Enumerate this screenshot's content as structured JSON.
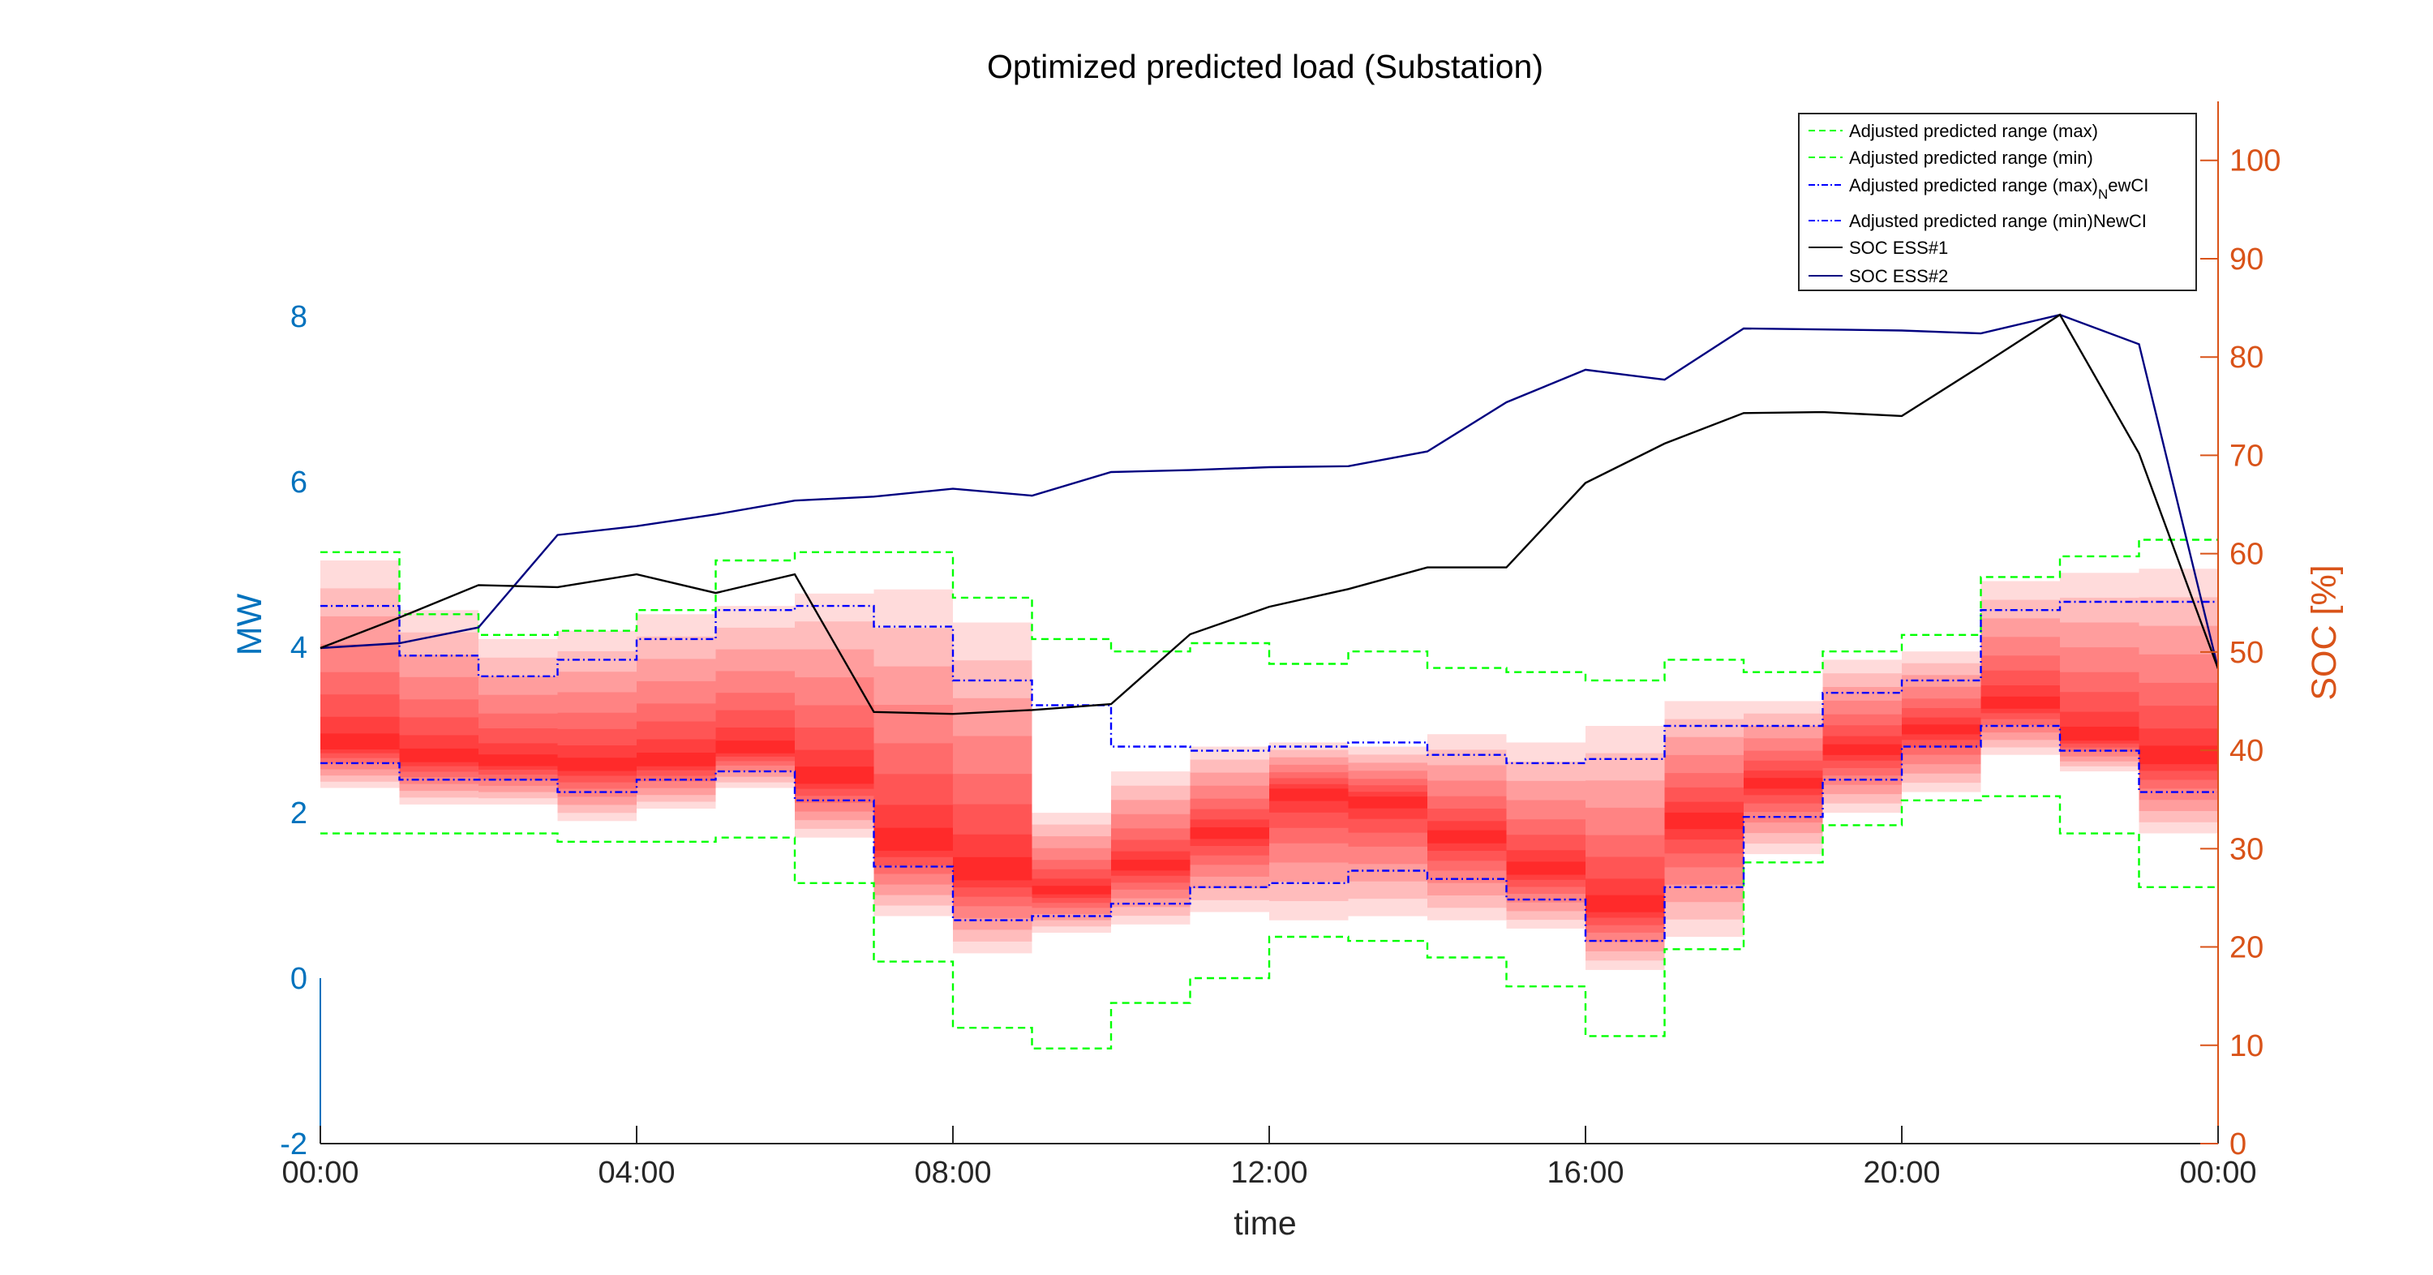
{
  "chart_data": {
    "type": "line",
    "title": "Optimized predicted load (Substation)",
    "xlabel": "time",
    "ylabel_left": "MW",
    "ylabel_right": "SOC [%]",
    "x_hours": [
      0,
      24
    ],
    "x_ticks": [
      0,
      4,
      8,
      12,
      16,
      20,
      24
    ],
    "x_tick_labels": [
      "00:00",
      "04:00",
      "08:00",
      "12:00",
      "16:00",
      "20:00",
      "00:00"
    ],
    "ylim_left": [
      -2,
      10.6
    ],
    "yticks_left": [
      -2,
      0,
      2,
      4,
      6,
      8
    ],
    "ylim_right": [
      0,
      106
    ],
    "yticks_right": [
      0,
      10,
      20,
      30,
      40,
      50,
      60,
      70,
      80,
      90,
      100
    ],
    "colors": {
      "left_axis": "#0072BD",
      "right_axis": "#D95319",
      "max_min_range": "#00FF00",
      "newci_range": "#0000FF",
      "soc1": "#000000",
      "soc2": "#000080",
      "band": "#FF0000"
    },
    "legend_position": "top-right",
    "legend": [
      "Adjusted predicted range (max)",
      "Adjusted predicted range (min)",
      "Adjusted predicted range (max)",
      "Adjusted predicted range (min)NewCI",
      "SOC ESS#1",
      "SOC ESS#2"
    ],
    "legend_sub": {
      "main": "N",
      "tail": "ewCI"
    },
    "hours": [
      0,
      1,
      2,
      3,
      4,
      5,
      6,
      7,
      8,
      9,
      10,
      11,
      12,
      13,
      14,
      15,
      16,
      17,
      18,
      19,
      20,
      21,
      22,
      23
    ],
    "range_max": [
      5.15,
      4.4,
      4.15,
      4.2,
      4.45,
      5.05,
      5.15,
      5.15,
      4.6,
      4.1,
      3.95,
      4.05,
      3.8,
      3.95,
      3.75,
      3.7,
      3.6,
      3.85,
      3.7,
      3.95,
      4.15,
      4.85,
      5.1,
      5.3
    ],
    "range_min": [
      1.75,
      1.75,
      1.75,
      1.65,
      1.65,
      1.7,
      1.15,
      0.2,
      -0.6,
      -0.85,
      -0.3,
      0,
      0.5,
      0.45,
      0.25,
      -0.1,
      -0.7,
      0.35,
      1.4,
      1.85,
      2.15,
      2.2,
      1.75,
      1.1
    ],
    "newci_max": [
      4.5,
      3.9,
      3.65,
      3.85,
      4.1,
      4.45,
      4.5,
      4.25,
      3.6,
      3.3,
      2.8,
      2.75,
      2.8,
      2.85,
      2.7,
      2.6,
      2.65,
      3.05,
      3.05,
      3.45,
      3.6,
      4.45,
      4.55,
      4.55
    ],
    "newci_min": [
      2.6,
      2.4,
      2.4,
      2.25,
      2.4,
      2.5,
      2.15,
      1.35,
      0.7,
      0.75,
      0.9,
      1.1,
      1.15,
      1.3,
      1.2,
      0.95,
      0.45,
      1.1,
      1.95,
      2.4,
      2.8,
      3.05,
      2.75,
      2.25
    ],
    "band_median": [
      2.8,
      2.65,
      2.6,
      2.55,
      2.6,
      2.75,
      2.4,
      1.6,
      1.25,
      1.05,
      1.35,
      1.75,
      2.25,
      2.15,
      1.7,
      1.3,
      0.85,
      1.9,
      2.35,
      2.75,
      3.0,
      3.3,
      2.9,
      2.65
    ],
    "band_outer_top": [
      5.05,
      4.45,
      4.1,
      4.2,
      4.4,
      4.5,
      4.65,
      4.7,
      4.3,
      2.0,
      2.5,
      2.8,
      2.85,
      2.8,
      2.95,
      2.85,
      3.05,
      3.35,
      3.35,
      3.85,
      3.95,
      4.8,
      4.9,
      4.95
    ],
    "band_outer_bottom": [
      2.3,
      2.1,
      2.1,
      1.9,
      2.05,
      2.3,
      1.7,
      0.75,
      0.3,
      0.55,
      0.65,
      0.8,
      0.7,
      0.75,
      0.7,
      0.6,
      0.1,
      0.5,
      1.5,
      2.0,
      2.25,
      2.7,
      2.5,
      1.75
    ],
    "soc_x": [
      0,
      1,
      2,
      3,
      4,
      5,
      6,
      7,
      8,
      9,
      10,
      11,
      12,
      13,
      14,
      15,
      16,
      17,
      18,
      19,
      20,
      21,
      22,
      23,
      24
    ],
    "soc_ess1": [
      50.4,
      53.5,
      56.8,
      56.6,
      57.9,
      56.0,
      57.9,
      43.9,
      43.7,
      44.1,
      44.7,
      51.8,
      54.6,
      56.4,
      58.6,
      58.6,
      67.2,
      71.2,
      74.3,
      74.4,
      74.0,
      79.1,
      84.3,
      70.2,
      48.3
    ],
    "soc_ess2": [
      50.4,
      50.9,
      52.5,
      61.9,
      62.8,
      64.0,
      65.4,
      65.8,
      66.6,
      65.9,
      68.3,
      68.5,
      68.8,
      68.9,
      70.4,
      75.4,
      78.7,
      77.7,
      82.9,
      82.8,
      82.7,
      82.4,
      84.3,
      81.3,
      48.3
    ]
  }
}
